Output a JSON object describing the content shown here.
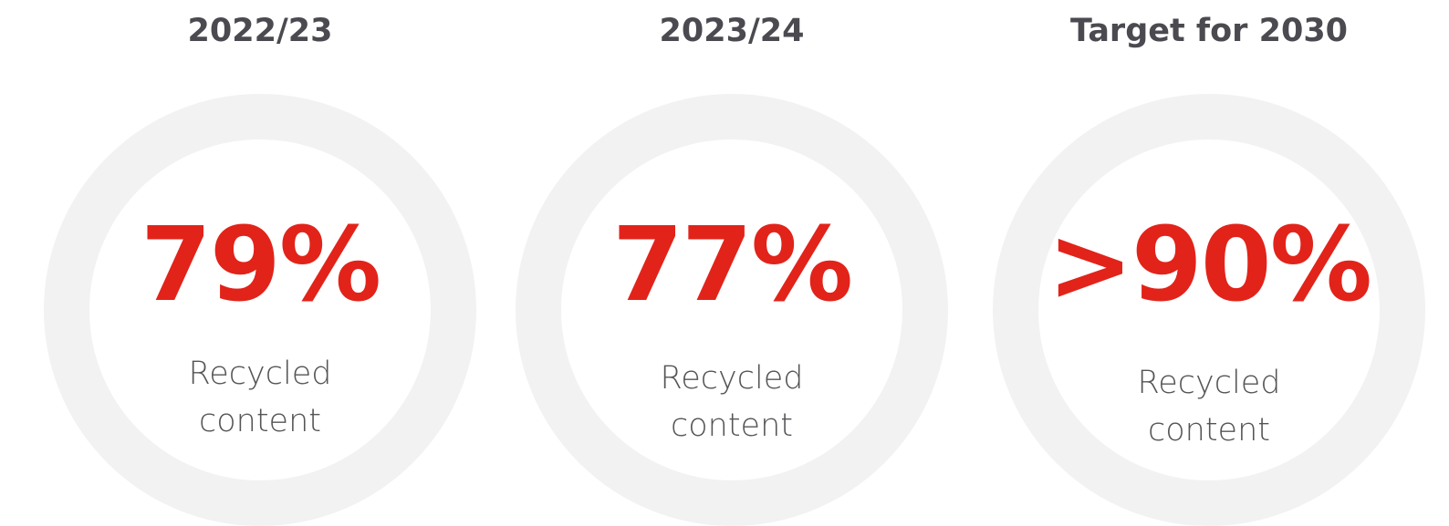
{
  "items": [
    {
      "heading": "2022/23",
      "value": "79%",
      "caption": "Recycled content"
    },
    {
      "heading": "2023/24",
      "value": "77%",
      "caption": "Recycled content"
    },
    {
      "heading": "Target for 2030",
      "value": ">90%",
      "caption": "Recycled content"
    }
  ]
}
